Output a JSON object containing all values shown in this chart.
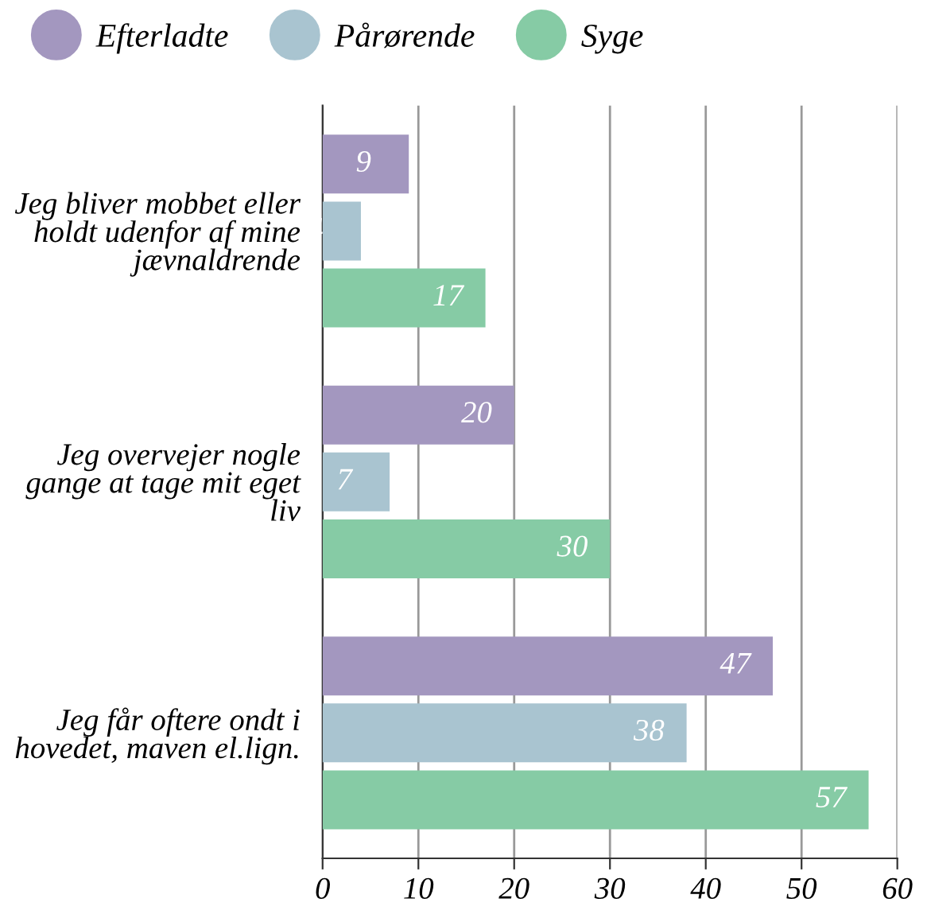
{
  "chart_data": {
    "type": "bar",
    "orientation": "horizontal",
    "categories": [
      "Jeg bliver mobbet eller holdt udenfor af mine jævnaldrende",
      "Jeg overvejer nogle gange at tage mit eget liv",
      "Jeg får oftere ondt i hovedet, maven el.lign."
    ],
    "series": [
      {
        "name": "Efterladte",
        "color": "#a397bf",
        "values": [
          9,
          20,
          47
        ]
      },
      {
        "name": "Pårørende",
        "color": "#a9c4d0",
        "values": [
          4,
          7,
          38
        ]
      },
      {
        "name": "Syge",
        "color": "#86cba5",
        "values": [
          17,
          30,
          57
        ]
      }
    ],
    "xlim": [
      0,
      60
    ],
    "xticks": [
      0,
      10,
      20,
      30,
      40,
      50,
      60
    ],
    "grid": "x",
    "legend": "top left",
    "data_labels": true
  }
}
